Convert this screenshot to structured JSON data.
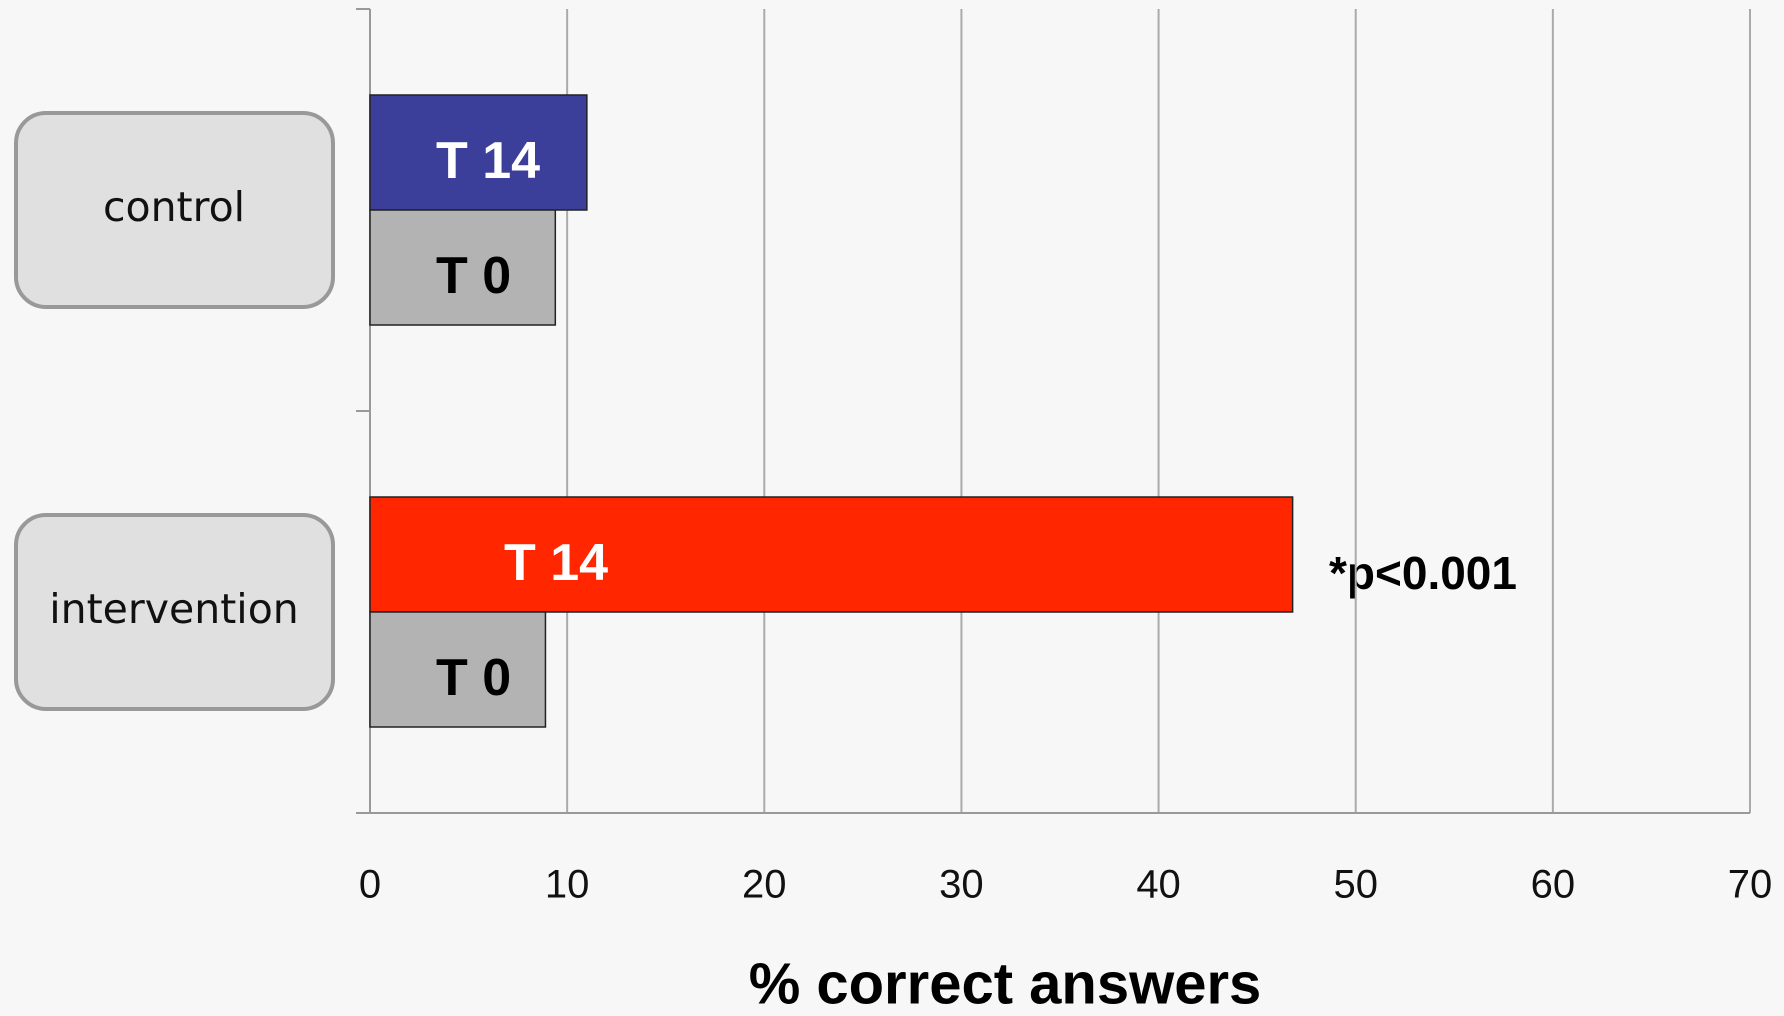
{
  "chart_data": {
    "type": "bar",
    "orientation": "horizontal",
    "categories": [
      "control",
      "intervention"
    ],
    "series": [
      {
        "name": "T 14",
        "colors": [
          "#3c3f99",
          "#ff2600"
        ],
        "label_color": "#ffffff",
        "values": [
          11,
          46.8
        ]
      },
      {
        "name": "T 0",
        "colors": [
          "#b3b3b3",
          "#b3b3b3"
        ],
        "label_color": "#000000",
        "values": [
          9.4,
          8.9
        ]
      }
    ],
    "xlim": [
      0,
      70
    ],
    "xticks": [
      0,
      10,
      20,
      30,
      40,
      50,
      60,
      70
    ],
    "grid": true,
    "xlabel": "% correct answers",
    "annotation": "*p<0.001"
  }
}
